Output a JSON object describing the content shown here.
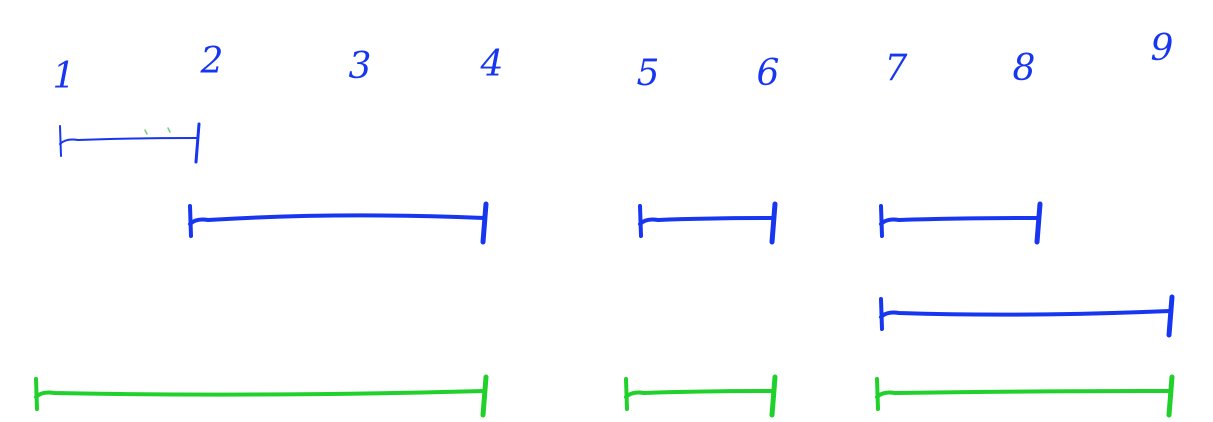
{
  "colors": {
    "blue": "#1736ef",
    "green": "#1fd12a",
    "background": "#ffffff"
  },
  "labels": [
    "1",
    "2",
    "3",
    "4",
    "5",
    "6",
    "7",
    "8",
    "9"
  ],
  "intervals": [
    {
      "group": "input",
      "start": 1,
      "end": 2,
      "color": "blue",
      "row": 0
    },
    {
      "group": "input",
      "start": 2,
      "end": 4,
      "color": "blue",
      "row": 1
    },
    {
      "group": "input",
      "start": 5,
      "end": 6,
      "color": "blue",
      "row": 1
    },
    {
      "group": "input",
      "start": 7,
      "end": 8,
      "color": "blue",
      "row": 1
    },
    {
      "group": "input",
      "start": 7,
      "end": 9,
      "color": "blue",
      "row": 2
    },
    {
      "group": "merged",
      "start": 1,
      "end": 4,
      "color": "green",
      "row": 3
    },
    {
      "group": "merged",
      "start": 5,
      "end": 6,
      "color": "green",
      "row": 3
    },
    {
      "group": "merged",
      "start": 7,
      "end": 9,
      "color": "green",
      "row": 3
    }
  ]
}
